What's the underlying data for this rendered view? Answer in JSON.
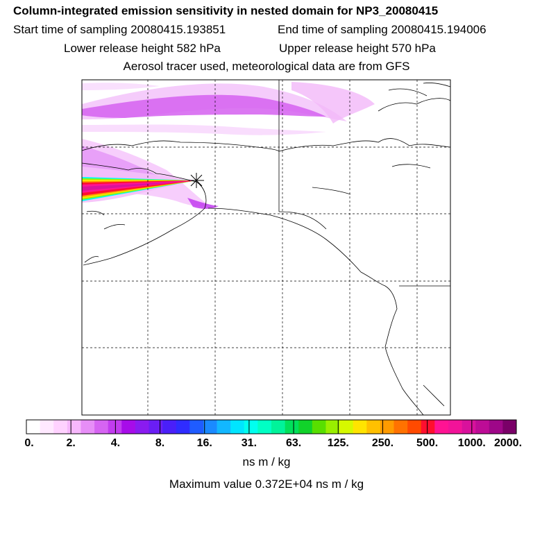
{
  "header": {
    "title": "Column-integrated emission sensitivity in nested domain for NP3_20080415",
    "start_time": "Start time of sampling 20080415.193851",
    "end_time": "End time of sampling 20080415.194006",
    "lower_release": "Lower release height  582 hPa",
    "upper_release": "Upper release height  570 hPa",
    "tracer_info": "Aerosol tracer used, meteorological data are from GFS"
  },
  "colorbar": {
    "colors": [
      "#ffffff",
      "#ffe9ff",
      "#ffd2ff",
      "#f7b8fc",
      "#e78ef7",
      "#d664f2",
      "#c23cef",
      "#a70ce9",
      "#8a1bf0",
      "#6a1ef5",
      "#4a1ff9",
      "#2f2cff",
      "#1f5cff",
      "#1a8aff",
      "#12b7ff",
      "#00e5ff",
      "#00ffef",
      "#00ffc4",
      "#00f39a",
      "#00e05a",
      "#11d22a",
      "#58df00",
      "#99ef00",
      "#d6f900",
      "#ffe400",
      "#ffc000",
      "#ff9b00",
      "#ff7200",
      "#ff4a00",
      "#ff0f2e",
      "#ff1393",
      "#f21399",
      "#d9119c",
      "#bd0c96",
      "#9e0788",
      "#7a0068"
    ],
    "labels": [
      "0.",
      "2.",
      "4.",
      "8.",
      "16.",
      "31.",
      "63.",
      "125.",
      "250.",
      "500.",
      "1000.",
      "2000."
    ],
    "units": "ns m / kg"
  },
  "max_value_text": "Maximum value  0.372E+04 ns m / kg"
}
